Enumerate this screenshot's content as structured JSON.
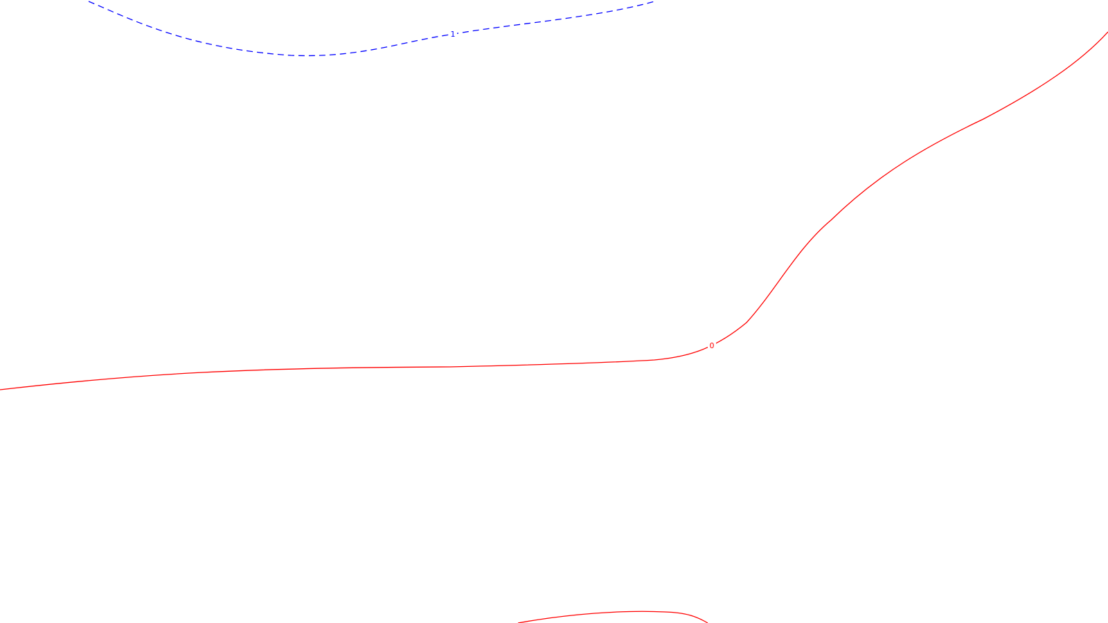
{
  "map": {
    "background": "#ffffff",
    "contours": [
      {
        "level": "1",
        "color": "#0000ff",
        "style": "dashed"
      },
      {
        "level": "0",
        "color": "#ff0000",
        "style": "solid"
      },
      {
        "level": "0",
        "color": "#ff0000",
        "style": "solid"
      }
    ],
    "labels": [
      {
        "text": "1",
        "color": "#0000ff"
      },
      {
        "text": "0",
        "color": "#ff0000"
      }
    ]
  }
}
